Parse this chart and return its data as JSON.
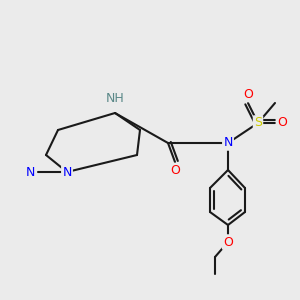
{
  "background_color": "#ebebeb",
  "bond_color": "#1a1a1a",
  "bond_width": 1.5,
  "atom_colors": {
    "N": "#0000ff",
    "NH": "#4a8a8a",
    "O": "#ff0000",
    "S": "#cccc00",
    "C": "#1a1a1a"
  },
  "font_size": 9,
  "font_size_small": 8
}
